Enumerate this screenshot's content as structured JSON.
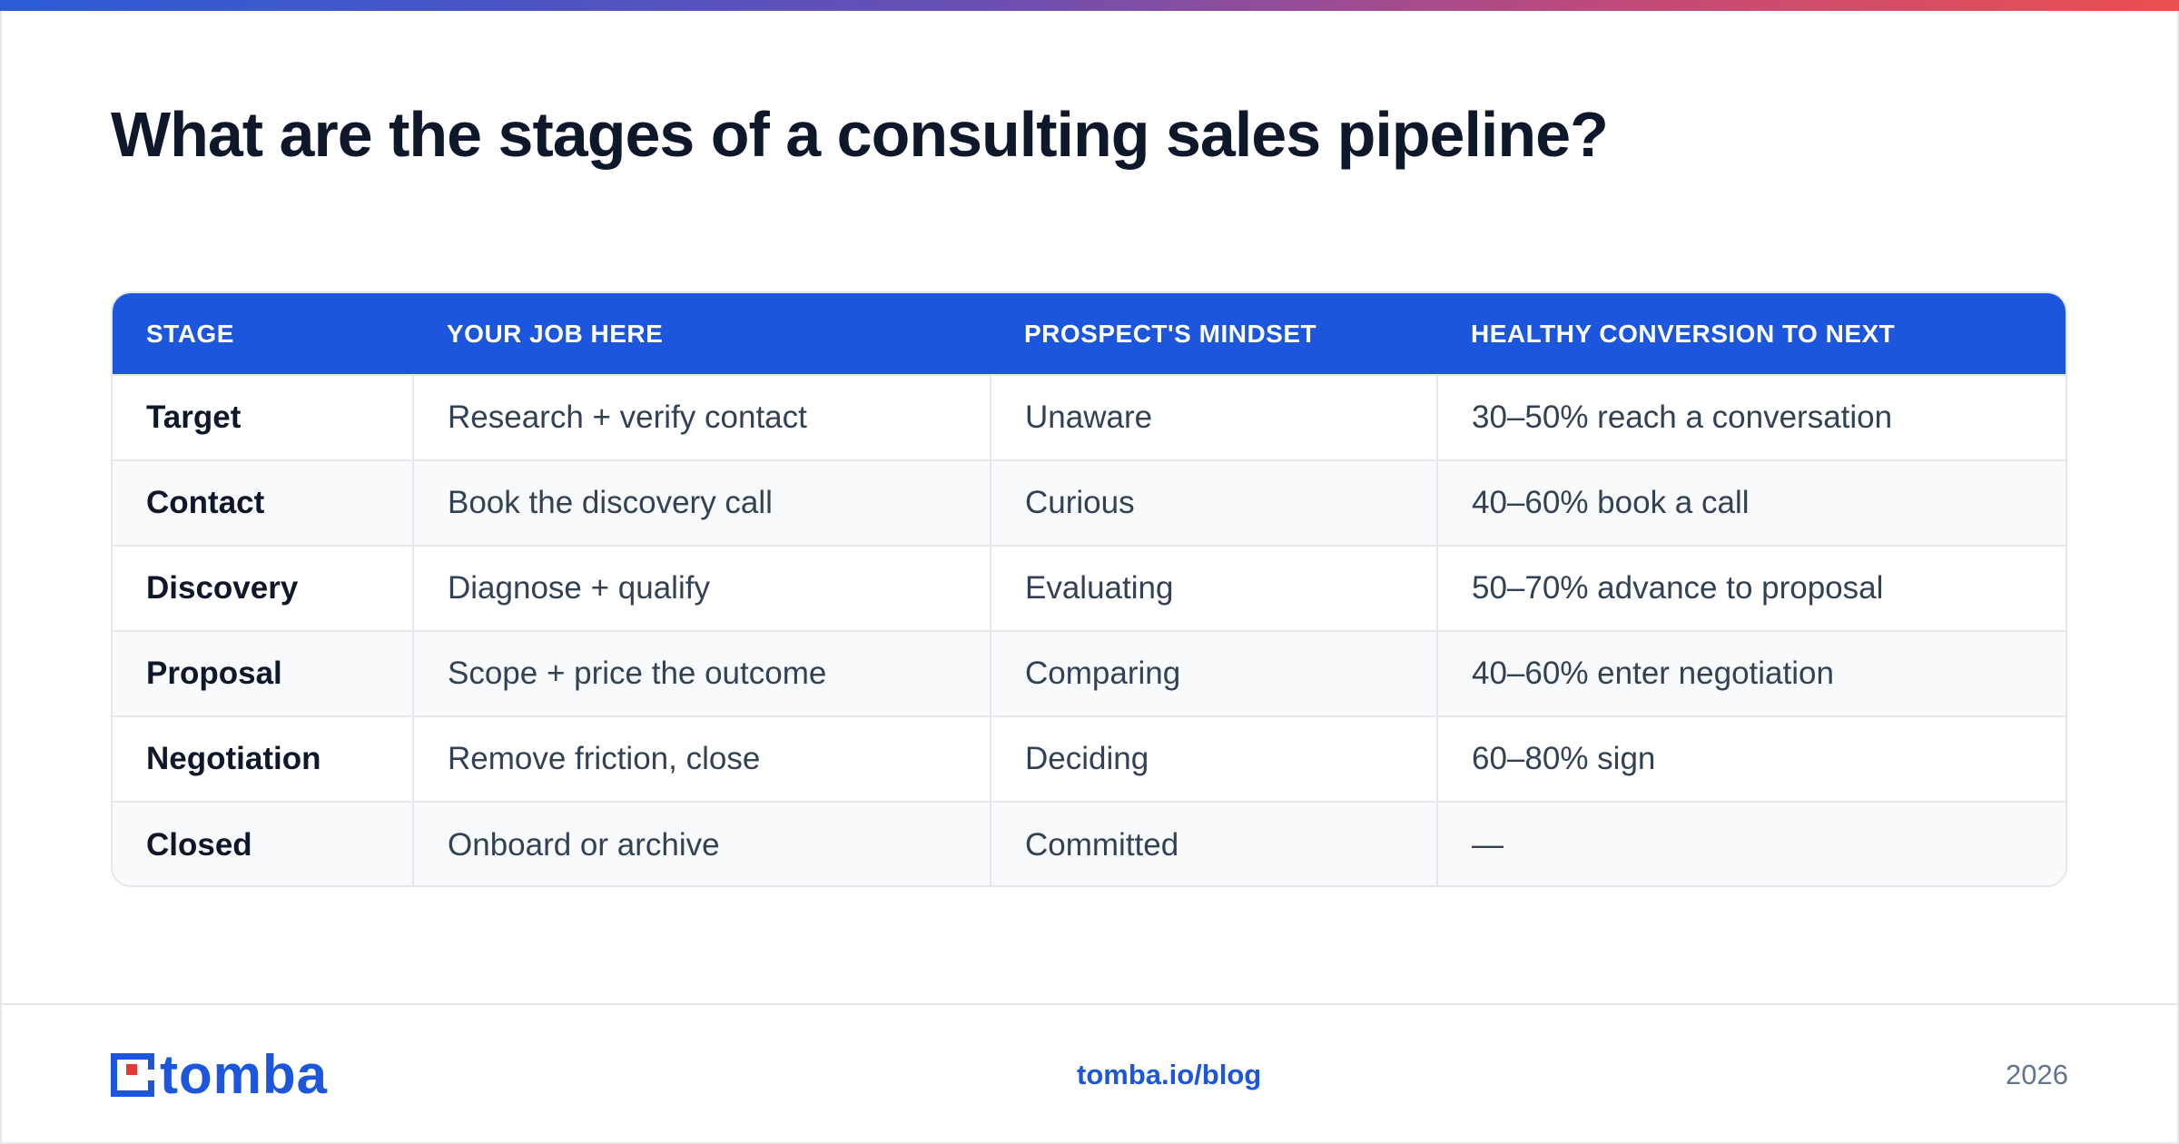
{
  "title": "What are the stages of a consulting sales pipeline?",
  "table": {
    "headers": [
      "STAGE",
      "YOUR JOB HERE",
      "PROSPECT'S MINDSET",
      "HEALTHY CONVERSION TO NEXT"
    ],
    "rows": [
      [
        "Target",
        "Research + verify contact",
        "Unaware",
        "30–50% reach a conversation"
      ],
      [
        "Contact",
        "Book the discovery call",
        "Curious",
        "40–60% book a call"
      ],
      [
        "Discovery",
        "Diagnose + qualify",
        "Evaluating",
        "50–70% advance to proposal"
      ],
      [
        "Proposal",
        "Scope + price the outcome",
        "Comparing",
        "40–60% enter negotiation"
      ],
      [
        "Negotiation",
        "Remove friction, close",
        "Deciding",
        "60–80% sign"
      ],
      [
        "Closed",
        "Onboard or archive",
        "Committed",
        "—"
      ]
    ]
  },
  "footer": {
    "logo_text": "tomba",
    "link": "tomba.io/blog",
    "year": "2026"
  },
  "colors": {
    "accent": "#1b56dc",
    "logo_dot": "#e53935"
  }
}
